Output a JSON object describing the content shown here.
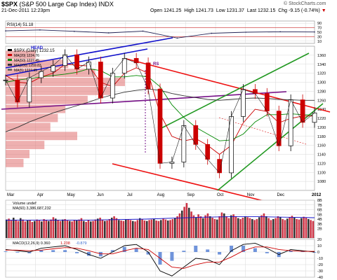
{
  "header": {
    "symbol": "$SPX",
    "name": "(S&P 500 Large Cap Index) INDX",
    "date": "21-Dec-2011 12:23pm",
    "open_label": "Open",
    "open": "1241.25",
    "high_label": "High",
    "high": "1241.73",
    "low_label": "Low",
    "low": "1231.37",
    "close_label": "Last",
    "close": "1232.15",
    "chg_label": "Chg",
    "chg": "-9.15 (-0.74%)",
    "down_arrow": "▼",
    "watermark": "© StockCharts.com"
  },
  "colors": {
    "up_candle": "#000000",
    "down_candle": "#cc0000",
    "ma20": "#cc0000",
    "ma50": "#008800",
    "ma200": "#333333",
    "trend_blue": "#1111cc",
    "trend_green": "#229922",
    "trend_red": "#ee1111",
    "trend_purple": "#771188",
    "volume_bar": "#cc3344",
    "volume_by_price": "#e07070",
    "rsi_line": "#222255",
    "macd_line": "#000000",
    "macd_signal": "#cc0000",
    "macd_hist": "#3366cc",
    "grid": "#d8d8d8"
  },
  "chart_data": [
    {
      "type": "line",
      "title": "RSI(14) 51.18",
      "legend": "RSI(14) 51.18",
      "ylim": [
        0,
        100
      ],
      "yticks": [
        "90",
        "70",
        "50",
        "30",
        "10"
      ],
      "reference_lines": [
        70,
        30
      ],
      "x": [
        "Mar",
        "Apr",
        "May",
        "Jun",
        "Jul",
        "Aug",
        "Sep",
        "Oct",
        "Nov",
        "Dec"
      ],
      "values": [
        56,
        60,
        54,
        47,
        55,
        24,
        45,
        50,
        52,
        51
      ]
    },
    {
      "type": "line",
      "title": "$SPX (Daily) 1232.15",
      "legend": [
        "$SPX (Daily) 1232.15",
        "MA(20) 1224.76",
        "MA(50) 1227.45",
        "MA(200) 1259.83",
        "MA(5) 1227.95"
      ],
      "price_type": "candlestick",
      "ylim": [
        1060,
        1380
      ],
      "yticks": [
        "1360",
        "1340",
        "1320",
        "1300",
        "1280",
        "1260",
        "1240",
        "1220",
        "1200",
        "1180",
        "1160",
        "1140",
        "1120",
        "1100",
        "1080"
      ],
      "xticks": [
        "Mar",
        "Apr",
        "May",
        "Jun",
        "Jul",
        "Aug",
        "Sep",
        "Oct",
        "Nov",
        "Dec",
        "2012"
      ],
      "annotations": [
        {
          "text": "HEAD"
        },
        {
          "text": "RS"
        }
      ],
      "series": [
        {
          "name": "$SPX",
          "dates": [
            "Mar-01",
            "Mar-15",
            "Mar-28",
            "Apr-11",
            "Apr-25",
            "May-02",
            "May-16",
            "May-31",
            "Jun-15",
            "Jun-30",
            "Jul-07",
            "Jul-21",
            "Aug-01",
            "Aug-08",
            "Aug-22",
            "Sep-01",
            "Sep-12",
            "Sep-22",
            "Oct-04",
            "Oct-14",
            "Oct-27",
            "Nov-08",
            "Nov-16",
            "Nov-25",
            "Dec-07",
            "Dec-14",
            "Dec-21"
          ],
          "values": [
            1305,
            1256,
            1310,
            1324,
            1337,
            1361,
            1329,
            1345,
            1265,
            1320,
            1353,
            1343,
            1285,
            1120,
            1123,
            1204,
            1162,
            1129,
            1099,
            1224,
            1284,
            1275,
            1236,
            1159,
            1261,
            1211,
            1232
          ]
        },
        {
          "name": "MA(20)",
          "values": [
            1315,
            1300,
            1298,
            1312,
            1320,
            1340,
            1338,
            1336,
            1300,
            1290,
            1320,
            1332,
            1320,
            1230,
            1180,
            1170,
            1175,
            1160,
            1140,
            1160,
            1210,
            1240,
            1235,
            1210,
            1220,
            1225,
            1225
          ]
        },
        {
          "name": "MA(50)",
          "values": [
            1300,
            1305,
            1308,
            1312,
            1315,
            1318,
            1322,
            1330,
            1326,
            1312,
            1312,
            1315,
            1312,
            1290,
            1250,
            1222,
            1200,
            1185,
            1170,
            1172,
            1185,
            1212,
            1228,
            1228,
            1230,
            1228,
            1227
          ]
        },
        {
          "name": "MA(200)",
          "values": [
            1190,
            1200,
            1212,
            1222,
            1232,
            1240,
            1248,
            1256,
            1265,
            1272,
            1278,
            1282,
            1285,
            1282,
            1275,
            1270,
            1266,
            1262,
            1260,
            1262,
            1264,
            1265,
            1264,
            1262,
            1261,
            1260,
            1260
          ]
        }
      ],
      "volume_by_price": {
        "levels": [
          1360,
          1340,
          1320,
          1300,
          1280,
          1260,
          1240,
          1220,
          1200,
          1180,
          1160,
          1140,
          1120
        ],
        "values": [
          20,
          42,
          60,
          80,
          72,
          55,
          40,
          35,
          30,
          48,
          26,
          16,
          12
        ]
      },
      "grid": true
    },
    {
      "type": "bar",
      "title": "Volume undef",
      "legend": [
        "Volume undef",
        "MA(60) 3,386,687,232"
      ],
      "ylim": [
        0,
        8
      ],
      "yticks": [
        "8B",
        "7B",
        "6B",
        "5B",
        "4B",
        "3B",
        "2B"
      ],
      "ylabel": "",
      "series": [
        {
          "name": "Volume",
          "values": [
            3.9,
            4.1,
            3.7,
            4.3,
            3.8,
            3.6,
            4.2,
            3.9,
            3.5,
            3.7,
            3.8,
            3.4,
            3.6,
            3.9,
            3.7,
            3.5,
            4.0,
            3.8,
            3.6,
            3.9,
            4.4,
            4.1,
            3.8,
            3.6,
            3.9,
            4.0,
            3.7,
            3.6,
            3.5,
            3.8,
            3.7,
            3.9,
            4.2,
            3.6,
            3.4,
            3.8,
            3.5,
            3.6,
            3.9,
            4.1,
            4.3,
            3.8,
            3.6,
            3.7,
            4.0,
            4.3,
            4.6,
            4.2,
            3.8,
            3.7,
            3.6,
            3.9,
            4.0,
            3.8,
            3.6,
            3.5,
            3.8,
            4.2,
            4.0,
            3.7,
            3.6,
            3.8,
            3.9,
            4.0,
            3.7,
            3.6,
            3.8,
            4.1,
            3.9,
            3.7,
            3.8,
            4.0,
            4.2,
            4.6,
            5.2,
            5.8,
            6.6,
            7.4,
            6.4,
            5.6,
            4.8,
            4.4,
            5.0,
            4.6,
            4.2,
            4.8,
            5.2,
            4.6,
            4.3,
            4.0,
            3.9,
            4.6,
            5.4,
            5.2,
            4.6,
            4.2,
            4.8,
            5.0,
            4.6,
            4.2,
            4.0,
            4.3,
            4.6,
            4.4,
            4.2,
            4.0,
            3.8,
            4.0,
            4.4,
            4.8,
            5.2,
            4.6,
            4.2,
            3.8,
            4.0,
            4.2,
            4.6,
            4.4,
            4.0,
            3.8,
            4.1,
            4.4,
            4.7,
            4.3,
            4.0,
            3.9,
            4.2,
            4.5,
            4.3,
            4.0,
            3.8,
            3.6
          ]
        },
        {
          "name": "MA(60)",
          "values": [
            3.8,
            3.8,
            3.8,
            3.8,
            3.9,
            4.0,
            4.2,
            4.4,
            4.5,
            4.5,
            4.4,
            4.3
          ]
        }
      ]
    },
    {
      "type": "line",
      "title": "MACD(12,26,9) 0.360, 1.238, -0.879",
      "legend": [
        "MACD(12,26,9) 0.360",
        "1.238",
        "-0.879"
      ],
      "ylim": [
        -40,
        20
      ],
      "yticks": [
        "20",
        "10",
        "0",
        "-10",
        "-20",
        "-30",
        "-40"
      ],
      "series": [
        {
          "name": "MACD",
          "values": [
            4,
            2,
            0,
            6,
            8,
            10,
            4,
            -4,
            -10,
            0,
            10,
            12,
            0,
            -30,
            -38,
            -24,
            -10,
            -12,
            -20,
            2,
            12,
            14,
            6,
            -4,
            4,
            2,
            0
          ]
        },
        {
          "name": "Signal",
          "values": [
            3,
            3,
            2,
            3,
            5,
            7,
            6,
            2,
            -3,
            -3,
            2,
            6,
            4,
            -10,
            -24,
            -26,
            -20,
            -16,
            -16,
            -8,
            2,
            8,
            8,
            4,
            2,
            1,
            1
          ]
        },
        {
          "name": "Histogram",
          "values": [
            1,
            -1,
            -2,
            3,
            3,
            3,
            -2,
            -6,
            -7,
            3,
            8,
            6,
            -4,
            -20,
            -14,
            2,
            10,
            4,
            -4,
            10,
            10,
            6,
            -2,
            -8,
            2,
            1,
            -1
          ]
        }
      ]
    }
  ]
}
